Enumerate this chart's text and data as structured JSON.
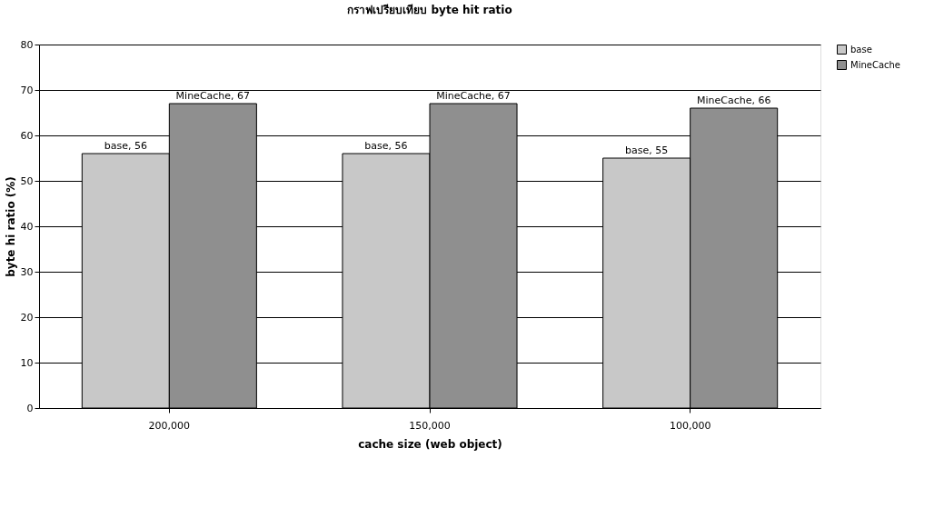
{
  "chart_data": {
    "type": "bar",
    "title": "กราฟเปรียบเทียบ byte hit ratio",
    "xlabel": "cache size (web object)",
    "ylabel": "byte hi ratio (%)",
    "categories": [
      "200,000",
      "150,000",
      "100,000"
    ],
    "series": [
      {
        "name": "base",
        "color": "#c8c8c8",
        "values": [
          56,
          56,
          55
        ],
        "value_labels": [
          "base, 56",
          "base, 56",
          "base, 55"
        ]
      },
      {
        "name": "MineCache",
        "color": "#8f8f8f",
        "values": [
          67,
          67,
          66
        ],
        "value_labels": [
          "MineCache, 67",
          "MineCache, 67",
          "MineCache, 66"
        ]
      }
    ],
    "ylim": [
      0,
      80
    ],
    "yticks": [
      0,
      10,
      20,
      30,
      40,
      50,
      60,
      70,
      80
    ],
    "grid": "y",
    "legend": "right"
  }
}
